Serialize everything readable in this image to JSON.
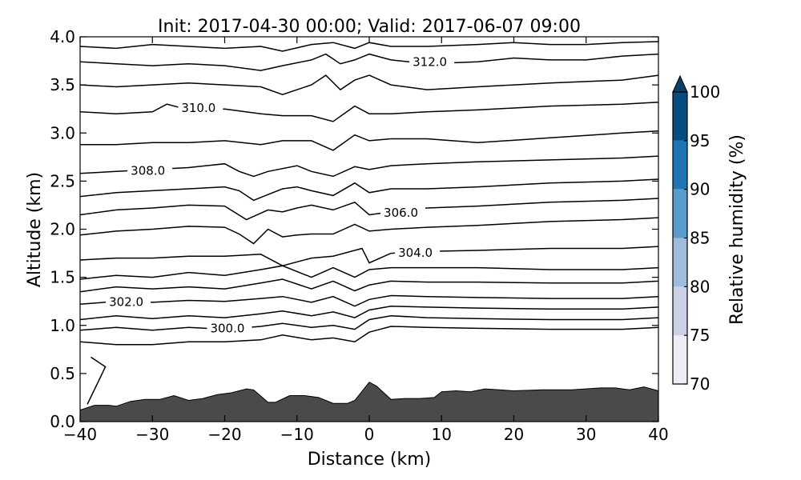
{
  "title": "Init: 2017-04-30 00:00; Valid: 2017-06-07 09:00",
  "chart_data": {
    "type": "contour",
    "xlabel": "Distance (km)",
    "ylabel": "Altitude (km)",
    "xlim": [
      -40,
      40
    ],
    "ylim": [
      0.0,
      4.0
    ],
    "xticks": [
      -40,
      -30,
      -20,
      -10,
      0,
      10,
      20,
      30,
      40
    ],
    "xtick_labels": [
      "−40",
      "−30",
      "−20",
      "−10",
      "0",
      "10",
      "20",
      "30",
      "40"
    ],
    "yticks": [
      0.0,
      0.5,
      1.0,
      1.5,
      2.0,
      2.5,
      3.0,
      3.5,
      4.0
    ],
    "ytick_labels": [
      "0.0",
      "0.5",
      "1.0",
      "1.5",
      "2.0",
      "2.5",
      "3.0",
      "3.5",
      "4.0"
    ],
    "terrain": {
      "x": [
        -40,
        -38,
        -36,
        -35,
        -33,
        -31,
        -29,
        -27,
        -25,
        -23,
        -21,
        -19,
        -17,
        -16,
        -14,
        -13,
        -11,
        -9,
        -7,
        -5,
        -3,
        -2,
        0,
        1,
        3,
        5,
        7,
        9,
        10,
        12,
        14,
        16,
        18,
        20,
        24,
        28,
        32,
        34,
        36,
        38,
        40
      ],
      "y": [
        0.12,
        0.17,
        0.17,
        0.16,
        0.21,
        0.23,
        0.23,
        0.27,
        0.22,
        0.24,
        0.28,
        0.3,
        0.34,
        0.33,
        0.2,
        0.2,
        0.27,
        0.27,
        0.25,
        0.19,
        0.19,
        0.22,
        0.41,
        0.37,
        0.23,
        0.24,
        0.24,
        0.25,
        0.31,
        0.32,
        0.31,
        0.34,
        0.33,
        0.32,
        0.33,
        0.33,
        0.35,
        0.35,
        0.33,
        0.36,
        0.32
      ]
    },
    "theta_contours": [
      {
        "x": [
          -39,
          -36.5,
          -38.5
        ],
        "y": [
          0.18,
          0.57,
          0.67
        ],
        "label": ""
      },
      {
        "x": [
          -40,
          -35,
          -30,
          -25,
          -20,
          -15,
          -12,
          -8,
          -5,
          -2,
          0,
          3,
          8,
          15,
          25,
          35,
          40
        ],
        "y": [
          0.83,
          0.8,
          0.8,
          0.83,
          0.83,
          0.85,
          0.9,
          0.85,
          0.87,
          0.83,
          0.93,
          0.99,
          0.98,
          0.97,
          0.96,
          0.96,
          0.98
        ],
        "label": ""
      },
      {
        "x": [
          -40,
          -35,
          -30,
          -25,
          -20,
          -15,
          -12,
          -8,
          -5,
          -2,
          0,
          3,
          8,
          15,
          25,
          35,
          40
        ],
        "y": [
          0.95,
          0.98,
          0.95,
          0.98,
          0.96,
          0.99,
          1.02,
          0.98,
          1.0,
          0.96,
          1.06,
          1.1,
          1.08,
          1.07,
          1.06,
          1.06,
          1.08
        ],
        "label": "300.0",
        "label_x": -22
      },
      {
        "x": [
          -40,
          -35,
          -30,
          -25,
          -20,
          -15,
          -12,
          -8,
          -5,
          -2,
          0,
          3,
          8,
          15,
          25,
          35,
          40
        ],
        "y": [
          1.06,
          1.1,
          1.07,
          1.1,
          1.08,
          1.12,
          1.15,
          1.1,
          1.14,
          1.08,
          1.16,
          1.2,
          1.19,
          1.18,
          1.17,
          1.17,
          1.19
        ],
        "label": ""
      },
      {
        "x": [
          -40,
          -35,
          -30,
          -25,
          -20,
          -15,
          -12,
          -8,
          -5,
          -2,
          0,
          3,
          8,
          15,
          25,
          35,
          40
        ],
        "y": [
          1.22,
          1.25,
          1.24,
          1.26,
          1.25,
          1.28,
          1.3,
          1.24,
          1.3,
          1.2,
          1.27,
          1.31,
          1.3,
          1.29,
          1.28,
          1.28,
          1.3
        ],
        "label": "302.0",
        "label_x": -36
      },
      {
        "x": [
          -40,
          -35,
          -30,
          -25,
          -20,
          -15,
          -12,
          -8,
          -5,
          -2,
          0,
          3,
          8,
          15,
          25,
          35,
          40
        ],
        "y": [
          1.35,
          1.4,
          1.38,
          1.4,
          1.38,
          1.44,
          1.48,
          1.38,
          1.46,
          1.36,
          1.42,
          1.46,
          1.45,
          1.45,
          1.44,
          1.44,
          1.46
        ],
        "label": ""
      },
      {
        "x": [
          -40,
          -35,
          -30,
          -25,
          -20,
          -15,
          -12,
          -8,
          -5,
          -2,
          0,
          3,
          8,
          15,
          25,
          35,
          40
        ],
        "y": [
          1.48,
          1.52,
          1.5,
          1.55,
          1.52,
          1.58,
          1.62,
          1.5,
          1.6,
          1.5,
          1.58,
          1.6,
          1.6,
          1.6,
          1.58,
          1.58,
          1.6
        ],
        "label": ""
      },
      {
        "x": [
          -40,
          -35,
          -30,
          -25,
          -20,
          -15,
          -12,
          -8,
          -5,
          -3,
          -1,
          0,
          3,
          8,
          15,
          25,
          35,
          40
        ],
        "y": [
          1.68,
          1.7,
          1.7,
          1.72,
          1.72,
          1.74,
          1.62,
          1.7,
          1.72,
          1.76,
          1.8,
          1.65,
          1.75,
          1.77,
          1.78,
          1.8,
          1.8,
          1.82
        ],
        "label": "304.0",
        "label_x": 4
      },
      {
        "x": [
          -40,
          -35,
          -30,
          -25,
          -20,
          -18,
          -16,
          -14,
          -12,
          -10,
          -8,
          -5,
          -2,
          0,
          3,
          8,
          15,
          25,
          35,
          40
        ],
        "y": [
          1.94,
          1.98,
          2.0,
          2.03,
          2.02,
          1.95,
          1.85,
          2.0,
          1.92,
          1.94,
          1.95,
          1.95,
          2.05,
          1.98,
          2.0,
          2.02,
          2.04,
          2.08,
          2.1,
          2.12
        ],
        "label": ""
      },
      {
        "x": [
          -40,
          -35,
          -30,
          -25,
          -20,
          -17,
          -14,
          -12,
          -10,
          -8,
          -5,
          -2,
          0,
          3,
          8,
          15,
          25,
          35,
          40
        ],
        "y": [
          2.15,
          2.2,
          2.22,
          2.25,
          2.24,
          2.1,
          2.2,
          2.18,
          2.22,
          2.25,
          2.2,
          2.28,
          2.15,
          2.18,
          2.22,
          2.24,
          2.28,
          2.3,
          2.32
        ],
        "label": "306.0",
        "label_x": 2
      },
      {
        "x": [
          -40,
          -35,
          -30,
          -25,
          -20,
          -18,
          -16,
          -14,
          -12,
          -10,
          -8,
          -5,
          -2,
          0,
          3,
          8,
          15,
          25,
          35,
          40
        ],
        "y": [
          2.34,
          2.38,
          2.4,
          2.42,
          2.44,
          2.4,
          2.3,
          2.36,
          2.42,
          2.44,
          2.4,
          2.35,
          2.48,
          2.38,
          2.42,
          2.42,
          2.44,
          2.48,
          2.5,
          2.52
        ],
        "label": ""
      },
      {
        "x": [
          -40,
          -35,
          -30,
          -25,
          -20,
          -18,
          -16,
          -14,
          -10,
          -8,
          -5,
          -2,
          0,
          3,
          8,
          15,
          25,
          35,
          40
        ],
        "y": [
          2.58,
          2.6,
          2.62,
          2.64,
          2.68,
          2.6,
          2.55,
          2.6,
          2.66,
          2.6,
          2.55,
          2.65,
          2.62,
          2.66,
          2.68,
          2.7,
          2.72,
          2.74,
          2.76
        ],
        "label": "308.0",
        "label_x": -33
      },
      {
        "x": [
          -40,
          -35,
          -30,
          -25,
          -20,
          -15,
          -12,
          -8,
          -5,
          -2,
          0,
          3,
          8,
          15,
          25,
          35,
          40
        ],
        "y": [
          2.88,
          2.88,
          2.9,
          2.9,
          2.92,
          2.88,
          2.92,
          2.92,
          2.82,
          2.98,
          2.92,
          2.94,
          2.94,
          2.9,
          2.95,
          3.0,
          3.02
        ],
        "label": ""
      },
      {
        "x": [
          -40,
          -35,
          -30,
          -28,
          -25,
          -20,
          -15,
          -12,
          -8,
          -5,
          -2,
          0,
          3,
          8,
          15,
          25,
          35,
          40
        ],
        "y": [
          3.22,
          3.2,
          3.22,
          3.3,
          3.24,
          3.25,
          3.2,
          3.18,
          3.18,
          3.12,
          3.28,
          3.2,
          3.2,
          3.22,
          3.24,
          3.28,
          3.3,
          3.32
        ],
        "label": "310.0",
        "label_x": -26
      },
      {
        "x": [
          -40,
          -35,
          -30,
          -25,
          -20,
          -15,
          -12,
          -8,
          -6,
          -4,
          -2,
          0,
          3,
          8,
          15,
          25,
          35,
          40
        ],
        "y": [
          3.5,
          3.48,
          3.5,
          3.52,
          3.5,
          3.48,
          3.4,
          3.5,
          3.6,
          3.45,
          3.55,
          3.6,
          3.5,
          3.45,
          3.48,
          3.52,
          3.55,
          3.6
        ],
        "label": ""
      },
      {
        "x": [
          -40,
          -35,
          -30,
          -25,
          -20,
          -15,
          -12,
          -8,
          -6,
          -4,
          -2,
          0,
          3,
          8,
          15,
          20,
          25,
          30,
          35,
          40
        ],
        "y": [
          3.74,
          3.72,
          3.7,
          3.72,
          3.7,
          3.65,
          3.7,
          3.76,
          3.82,
          3.72,
          3.76,
          3.82,
          3.76,
          3.72,
          3.74,
          3.78,
          3.76,
          3.76,
          3.8,
          3.82
        ],
        "label": "312.0",
        "label_x": 6
      },
      {
        "x": [
          -40,
          -35,
          -30,
          -25,
          -20,
          -15,
          -12,
          -8,
          -5,
          -2,
          0,
          3,
          8,
          15,
          20,
          25,
          30,
          35,
          40
        ],
        "y": [
          3.9,
          3.88,
          3.92,
          3.9,
          3.88,
          3.9,
          3.85,
          3.92,
          3.94,
          3.88,
          3.94,
          3.9,
          3.9,
          3.92,
          3.94,
          3.92,
          3.92,
          3.94,
          3.95
        ],
        "label": ""
      }
    ]
  },
  "colorbar": {
    "label": "Relative humidity (%)",
    "min": 70,
    "max": 100,
    "tick_values": [
      70,
      75,
      80,
      85,
      90,
      95,
      100
    ],
    "tick_labels": [
      "70",
      "75",
      "80",
      "85",
      "90",
      "95",
      "100"
    ],
    "bins": [
      {
        "from": 70,
        "to": 75,
        "color": "#f0ecf4"
      },
      {
        "from": 75,
        "to": 80,
        "color": "#cccfe5"
      },
      {
        "from": 80,
        "to": 85,
        "color": "#9fbcdc"
      },
      {
        "from": 85,
        "to": 90,
        "color": "#5a9ccc"
      },
      {
        "from": 90,
        "to": 95,
        "color": "#1e74b4"
      },
      {
        "from": 95,
        "to": 100,
        "color": "#074c7e"
      }
    ],
    "extend_color": "#08406a"
  },
  "colors": {
    "terrain": "#4a4a4a",
    "contour": "#000000"
  }
}
